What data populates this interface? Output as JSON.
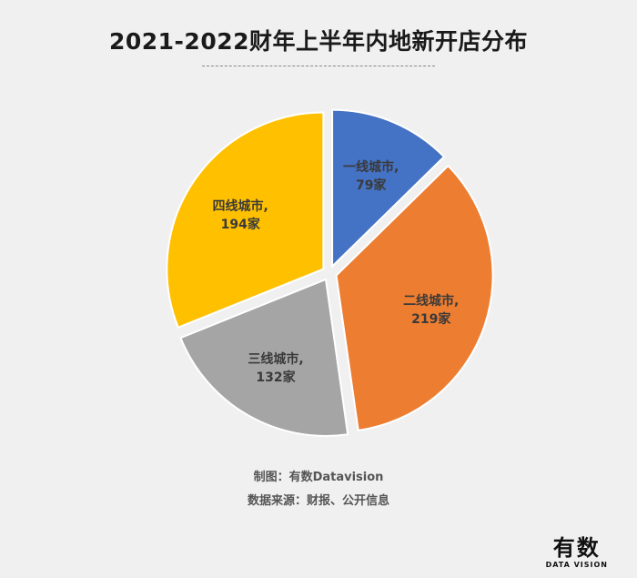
{
  "chart_data": {
    "type": "pie",
    "title": "2021-2022财年上半年内地新开店分布",
    "slices": [
      {
        "name": "一线城市",
        "value": 79,
        "label_line1": "一线城市,",
        "label_line2": "79家",
        "color": "#4472c4"
      },
      {
        "name": "二线城市",
        "value": 219,
        "label_line1": "二线城市,",
        "label_line2": "219家",
        "color": "#ed7d31"
      },
      {
        "name": "三线城市",
        "value": 132,
        "label_line1": "三线城市,",
        "label_line2": "132家",
        "color": "#a5a5a5"
      },
      {
        "name": "四线城市",
        "value": 194,
        "label_line1": "四线城市,",
        "label_line2": "194家",
        "color": "#ffc000"
      }
    ]
  },
  "credits": {
    "maker": "制图：有数Datavision",
    "source": "数据来源：财报、公开信息"
  },
  "logo": {
    "main": "有数",
    "sub": "DATA VISION"
  }
}
